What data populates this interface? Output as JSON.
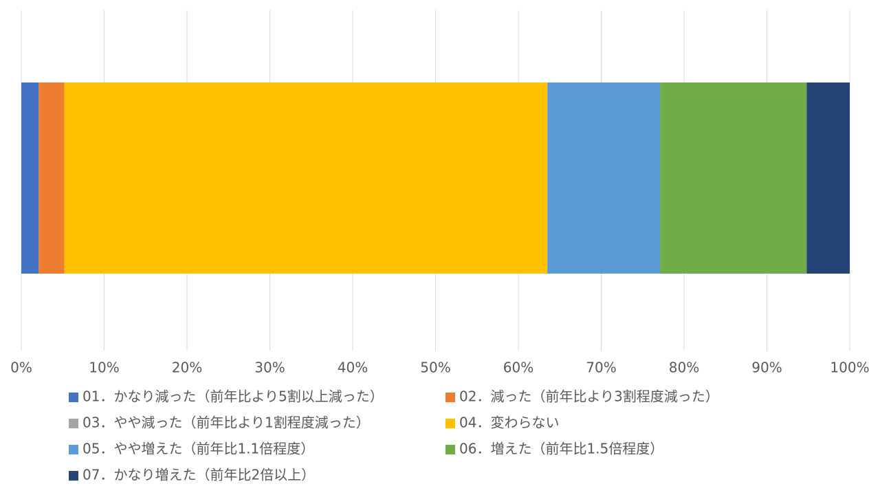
{
  "chart_data": {
    "type": "stacked-bar-100",
    "orientation": "horizontal",
    "xlim": [
      0,
      100
    ],
    "xticks": [
      {
        "value": 0,
        "label": "0%"
      },
      {
        "value": 10,
        "label": "10%"
      },
      {
        "value": 20,
        "label": "20%"
      },
      {
        "value": 30,
        "label": "30%"
      },
      {
        "value": 40,
        "label": "40%"
      },
      {
        "value": 50,
        "label": "50%"
      },
      {
        "value": 60,
        "label": "60%"
      },
      {
        "value": 70,
        "label": "70%"
      },
      {
        "value": 80,
        "label": "80%"
      },
      {
        "value": 90,
        "label": "90%"
      },
      {
        "value": 100,
        "label": "100%"
      }
    ],
    "grid": true,
    "legend": "bottom",
    "series": [
      {
        "name": "01．かなり減った（前年比より5割以上減った）",
        "color": "#4472c4",
        "values": [
          2.1
        ]
      },
      {
        "name": "02．減った（前年比より3割程度減った）",
        "color": "#ed7d31",
        "values": [
          3.1
        ]
      },
      {
        "name": "03．やや減った（前年比より1割程度減った）",
        "color": "#a5a5a5",
        "values": [
          0
        ]
      },
      {
        "name": "04．変わらない",
        "color": "#ffc000",
        "values": [
          58.3
        ]
      },
      {
        "name": "05．やや増えた（前年比1.1倍程度）",
        "color": "#5b9bd5",
        "values": [
          13.6
        ]
      },
      {
        "name": "06．増えた（前年比1.5倍程度）",
        "color": "#70ad47",
        "values": [
          17.7
        ]
      },
      {
        "name": "07．かなり増えた（前年比2倍以上）",
        "color": "#264478",
        "values": [
          5.2
        ]
      }
    ]
  }
}
